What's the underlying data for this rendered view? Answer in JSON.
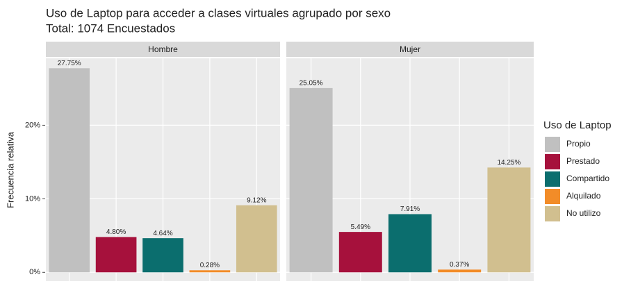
{
  "chart_data": {
    "type": "bar",
    "title": "Uso de Laptop para acceder a clases virtuales agrupado por sexo",
    "subtitle": "Total: 1074 Encuestados",
    "y_label": "Frecuencia relativa",
    "legend_title": "Uso de Laptop",
    "legend_position": "right",
    "categories": [
      "Propio",
      "Prestado",
      "Compartido",
      "Alquilado",
      "No utilizo"
    ],
    "colors": [
      "#c0c0c0",
      "#a6113c",
      "#0b6e6e",
      "#f28c28",
      "#d1bf8f"
    ],
    "facets": [
      {
        "name": "Hombre",
        "values": [
          27.75,
          4.8,
          4.64,
          0.28,
          9.12
        ],
        "value_labels": [
          "27.75%",
          "4.80%",
          "4.64%",
          "0.28%",
          "9.12%"
        ]
      },
      {
        "name": "Mujer",
        "values": [
          25.05,
          5.49,
          7.91,
          0.37,
          14.25
        ],
        "value_labels": [
          "25.05%",
          "5.49%",
          "7.91%",
          "0.37%",
          "14.25%"
        ]
      }
    ],
    "ylim": [
      -1.2,
      29.1
    ],
    "yticks": [
      {
        "value": 0,
        "label": "0%"
      },
      {
        "value": 10,
        "label": "10%"
      },
      {
        "value": 20,
        "label": "20%"
      }
    ],
    "grid": true
  }
}
